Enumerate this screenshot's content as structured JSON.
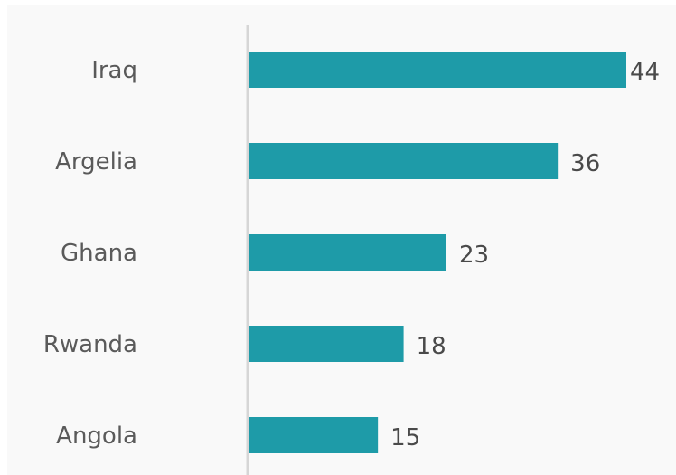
{
  "chart_data": {
    "type": "bar",
    "orientation": "horizontal",
    "categories": [
      "Iraq",
      "Argelia",
      "Ghana",
      "Rwanda",
      "Angola"
    ],
    "values": [
      44,
      36,
      23,
      18,
      15
    ],
    "xlim": [
      0,
      44
    ],
    "grid": false,
    "bar_color": "#1e9ba8",
    "axis_color": "#d6d6d6",
    "background_color": "#f9f9f9"
  }
}
